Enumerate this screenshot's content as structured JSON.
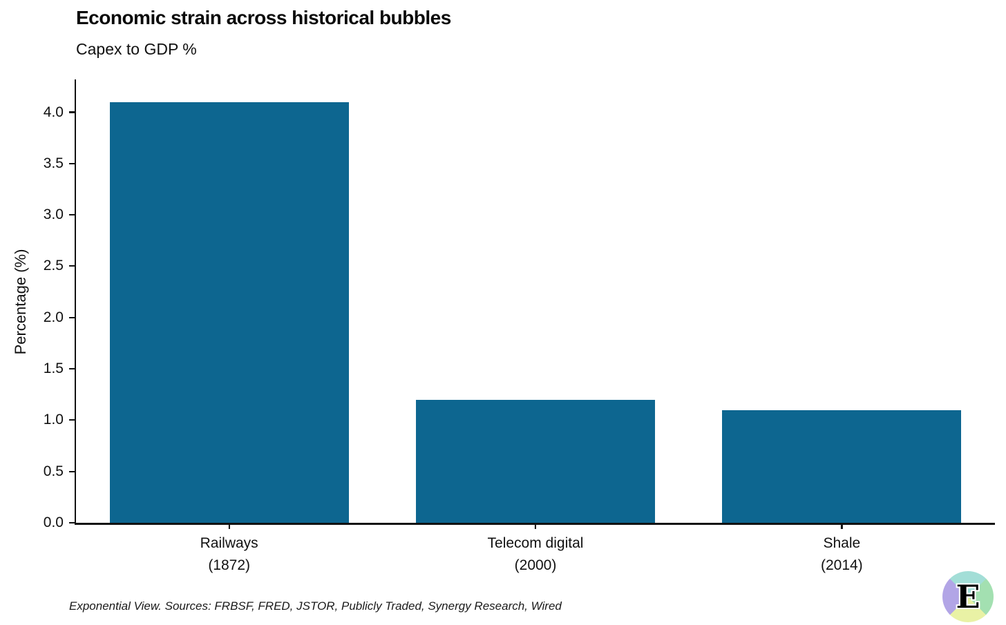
{
  "header": {
    "title": "Economic strain across historical bubbles",
    "subtitle": "Capex to GDP %"
  },
  "footer": {
    "attribution": "Exponential View. Sources: FRBSF, FRED, JSTOR, Publicly Traded, Synergy Research, Wired"
  },
  "logo": {
    "letter": "E",
    "quadrant_colors": {
      "top": "#a3ded7",
      "right": "#a3e0b1",
      "bottom": "#e9f2a5",
      "left": "#b2a5e6"
    }
  },
  "chart_data": {
    "type": "bar",
    "title": "Economic strain across historical bubbles",
    "subtitle": "Capex to GDP %",
    "xlabel": "",
    "ylabel": "Percentage (%)",
    "categories": [
      {
        "name": "Railways",
        "year": "(1872)"
      },
      {
        "name": "Telecom digital",
        "year": "(2000)"
      },
      {
        "name": "Shale",
        "year": "(2014)"
      }
    ],
    "values": [
      4.1,
      1.2,
      1.1
    ],
    "ylim": [
      0,
      4.32
    ],
    "yticks": [
      "0.0",
      "0.5",
      "1.0",
      "1.5",
      "2.0",
      "2.5",
      "3.0",
      "3.5",
      "4.0"
    ],
    "grid": "off",
    "legend": "none",
    "bar_color": "#0d6690",
    "bar_width_fraction": 0.78,
    "axis_color": "#111111"
  }
}
